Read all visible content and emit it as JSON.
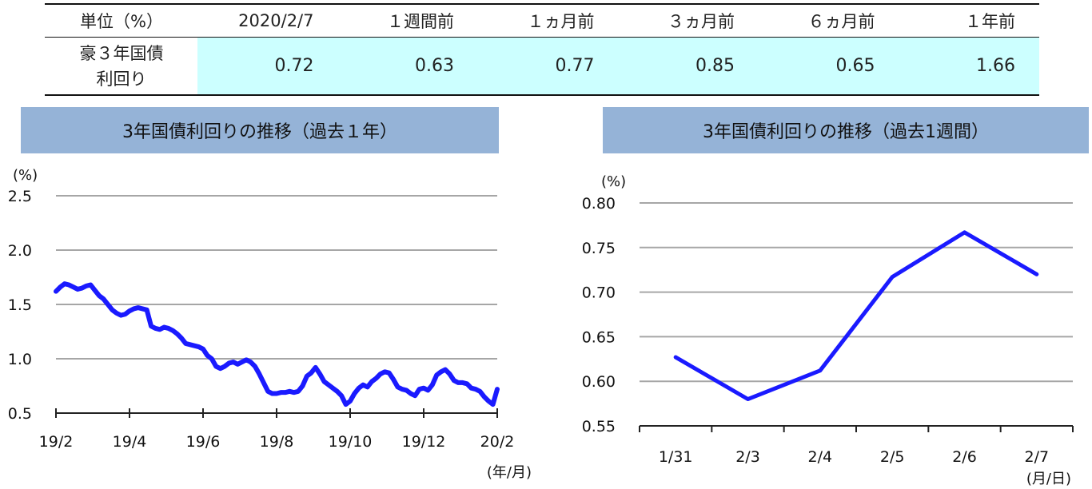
{
  "table": {
    "headers": [
      "単位（%）",
      "2020/2/7",
      "１週間前",
      "１ヵ月前",
      "３ヵ月前",
      "６ヵ月前",
      "１年前"
    ],
    "row_label_line1": "豪３年国債",
    "row_label_line2": "利回り",
    "values": [
      "0.72",
      "0.63",
      "0.77",
      "0.85",
      "0.65",
      "1.66"
    ],
    "highlight_color": "#ccffff"
  },
  "chart_data": [
    {
      "type": "line",
      "title": "3年国債利回りの推移（過去１年）",
      "ylabel": "(%)",
      "xlabel": "(年/月)",
      "ylim": [
        0.5,
        2.5
      ],
      "yticks": [
        "2.5",
        "2.0",
        "1.5",
        "1.0",
        "0.5"
      ],
      "ytick_values": [
        2.5,
        2.0,
        1.5,
        1.0,
        0.5
      ],
      "xticks": [
        "19/2",
        "19/4",
        "19/6",
        "19/8",
        "19/10",
        "19/12",
        "20/2"
      ],
      "grid": true,
      "line_color": "#1a1aff",
      "series": [
        {
          "values": [
            1.62,
            1.66,
            1.69,
            1.68,
            1.66,
            1.64,
            1.65,
            1.67,
            1.68,
            1.63,
            1.58,
            1.55,
            1.5,
            1.45,
            1.42,
            1.4,
            1.41,
            1.44,
            1.46,
            1.47,
            1.46,
            1.45,
            1.3,
            1.28,
            1.27,
            1.29,
            1.28,
            1.26,
            1.23,
            1.19,
            1.14,
            1.13,
            1.12,
            1.11,
            1.09,
            1.03,
            1.0,
            0.93,
            0.91,
            0.93,
            0.96,
            0.97,
            0.95,
            0.97,
            0.99,
            0.97,
            0.93,
            0.86,
            0.78,
            0.7,
            0.68,
            0.68,
            0.69,
            0.69,
            0.7,
            0.69,
            0.7,
            0.75,
            0.84,
            0.87,
            0.92,
            0.86,
            0.79,
            0.76,
            0.73,
            0.7,
            0.66,
            0.58,
            0.61,
            0.68,
            0.73,
            0.76,
            0.74,
            0.79,
            0.82,
            0.86,
            0.88,
            0.87,
            0.81,
            0.74,
            0.72,
            0.71,
            0.68,
            0.66,
            0.72,
            0.73,
            0.71,
            0.76,
            0.85,
            0.88,
            0.9,
            0.86,
            0.8,
            0.78,
            0.78,
            0.77,
            0.73,
            0.72,
            0.7,
            0.65,
            0.61,
            0.58,
            0.72
          ]
        }
      ]
    },
    {
      "type": "line",
      "title": "3年国債利回りの推移（過去1週間）",
      "ylabel": "(%)",
      "xlabel": "(月/日)",
      "ylim": [
        0.55,
        0.8
      ],
      "yticks": [
        "0.80",
        "0.75",
        "0.70",
        "0.65",
        "0.60",
        "0.55"
      ],
      "ytick_values": [
        0.8,
        0.75,
        0.7,
        0.65,
        0.6,
        0.55
      ],
      "categories": [
        "1/31",
        "2/3",
        "2/4",
        "2/5",
        "2/6",
        "2/7"
      ],
      "grid": true,
      "line_color": "#1a1aff",
      "series": [
        {
          "values": [
            0.627,
            0.58,
            0.612,
            0.717,
            0.767,
            0.72
          ]
        }
      ]
    }
  ]
}
